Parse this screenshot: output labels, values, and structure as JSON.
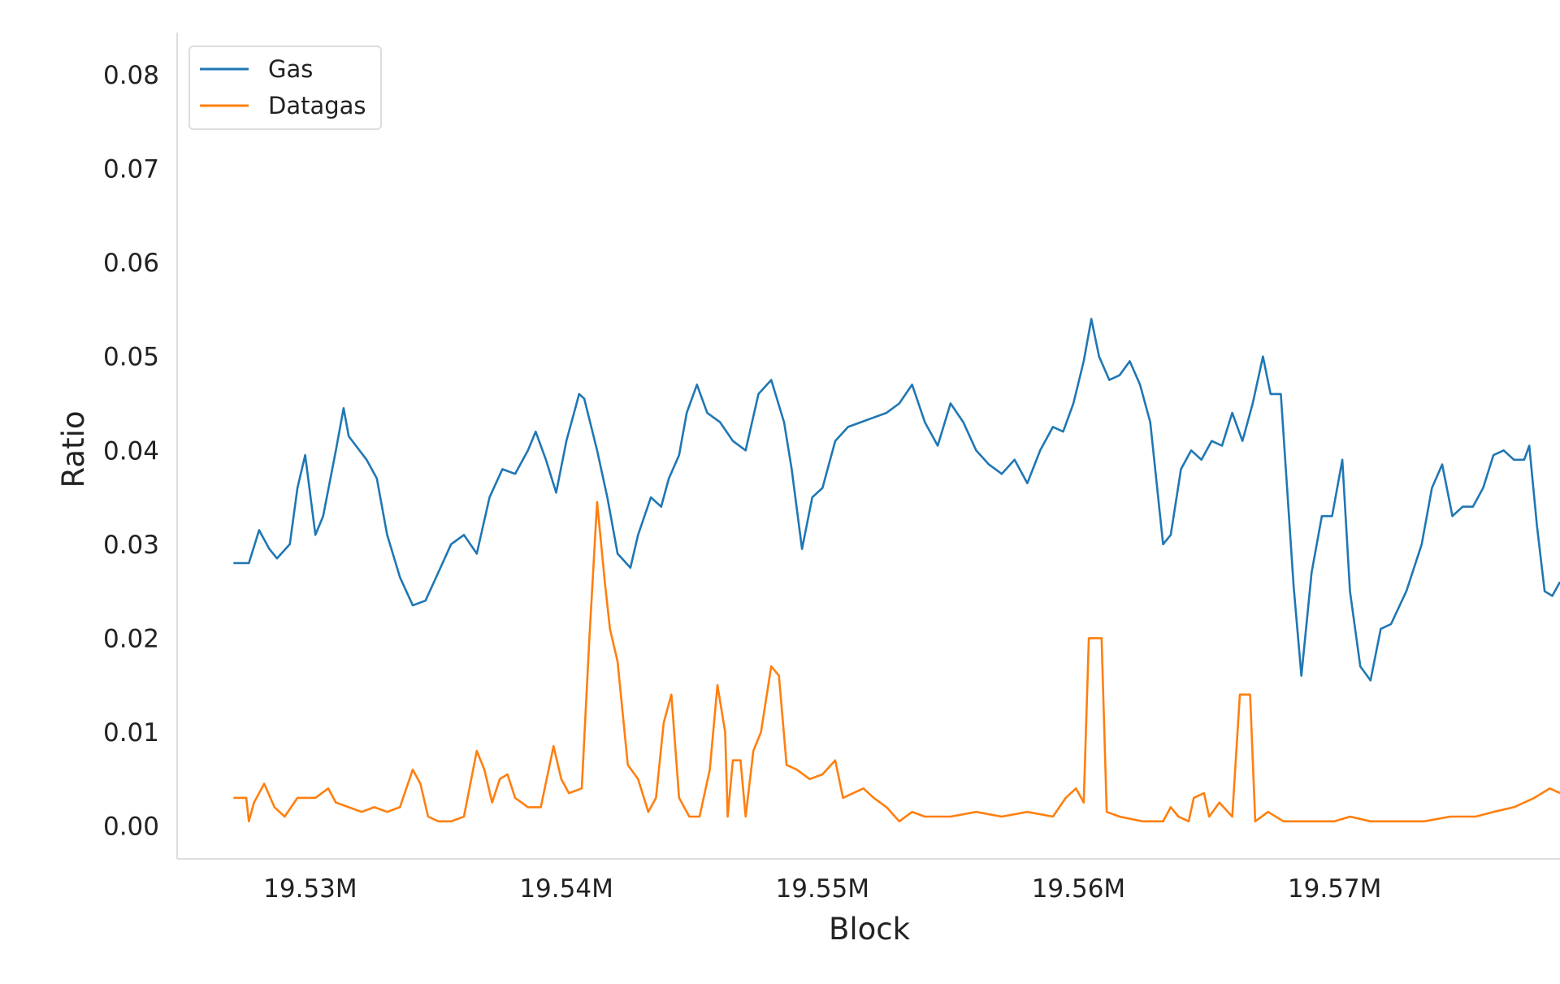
{
  "chart_data": {
    "type": "line",
    "title": "",
    "xlabel": "Block",
    "ylabel": "Ratio",
    "xlim": [
      19524800,
      19578800
    ],
    "ylim": [
      -0.0035,
      0.0845
    ],
    "x_ticks": [
      {
        "value": 19530000,
        "label": "19.53M"
      },
      {
        "value": 19540000,
        "label": "19.54M"
      },
      {
        "value": 19550000,
        "label": "19.55M"
      },
      {
        "value": 19560000,
        "label": "19.56M"
      },
      {
        "value": 19570000,
        "label": "19.57M"
      }
    ],
    "y_ticks": [
      {
        "value": 0.0,
        "label": "0.00"
      },
      {
        "value": 0.01,
        "label": "0.01"
      },
      {
        "value": 0.02,
        "label": "0.02"
      },
      {
        "value": 0.03,
        "label": "0.03"
      },
      {
        "value": 0.04,
        "label": "0.04"
      },
      {
        "value": 0.05,
        "label": "0.05"
      },
      {
        "value": 0.06,
        "label": "0.06"
      },
      {
        "value": 0.07,
        "label": "0.07"
      },
      {
        "value": 0.08,
        "label": "0.08"
      }
    ],
    "grid": false,
    "legend_position": "top-left",
    "series": [
      {
        "name": "Gas",
        "color": "#1f77b4",
        "points": [
          [
            19527000,
            0.028
          ],
          [
            19527600,
            0.028
          ],
          [
            19528000,
            0.0315
          ],
          [
            19528400,
            0.0295
          ],
          [
            19528700,
            0.0285
          ],
          [
            19529200,
            0.03
          ],
          [
            19529500,
            0.036
          ],
          [
            19529800,
            0.0395
          ],
          [
            19530200,
            0.031
          ],
          [
            19530500,
            0.033
          ],
          [
            19531000,
            0.04
          ],
          [
            19531300,
            0.0445
          ],
          [
            19531500,
            0.0415
          ],
          [
            19532200,
            0.039
          ],
          [
            19532600,
            0.037
          ],
          [
            19533000,
            0.031
          ],
          [
            19533500,
            0.0265
          ],
          [
            19534000,
            0.0235
          ],
          [
            19534500,
            0.024
          ],
          [
            19535000,
            0.027
          ],
          [
            19535500,
            0.03
          ],
          [
            19536000,
            0.031
          ],
          [
            19536500,
            0.029
          ],
          [
            19537000,
            0.035
          ],
          [
            19537500,
            0.038
          ],
          [
            19538000,
            0.0375
          ],
          [
            19538500,
            0.04
          ],
          [
            19538800,
            0.042
          ],
          [
            19539200,
            0.039
          ],
          [
            19539600,
            0.0355
          ],
          [
            19540000,
            0.041
          ],
          [
            19540500,
            0.046
          ],
          [
            19540700,
            0.0455
          ],
          [
            19541200,
            0.04
          ],
          [
            19541600,
            0.035
          ],
          [
            19542000,
            0.029
          ],
          [
            19542500,
            0.0275
          ],
          [
            19542800,
            0.031
          ],
          [
            19543300,
            0.035
          ],
          [
            19543700,
            0.034
          ],
          [
            19544000,
            0.037
          ],
          [
            19544400,
            0.0395
          ],
          [
            19544700,
            0.044
          ],
          [
            19545100,
            0.047
          ],
          [
            19545500,
            0.044
          ],
          [
            19546000,
            0.043
          ],
          [
            19546500,
            0.041
          ],
          [
            19547000,
            0.04
          ],
          [
            19547500,
            0.046
          ],
          [
            19548000,
            0.0475
          ],
          [
            19548500,
            0.043
          ],
          [
            19548800,
            0.038
          ],
          [
            19549200,
            0.0295
          ],
          [
            19549600,
            0.035
          ],
          [
            19550000,
            0.036
          ],
          [
            19550500,
            0.041
          ],
          [
            19551000,
            0.0425
          ],
          [
            19551500,
            0.043
          ],
          [
            19552000,
            0.0435
          ],
          [
            19552500,
            0.044
          ],
          [
            19553000,
            0.045
          ],
          [
            19553500,
            0.047
          ],
          [
            19554000,
            0.043
          ],
          [
            19554500,
            0.0405
          ],
          [
            19555000,
            0.045
          ],
          [
            19555500,
            0.043
          ],
          [
            19556000,
            0.04
          ],
          [
            19556500,
            0.0385
          ],
          [
            19557000,
            0.0375
          ],
          [
            19557500,
            0.039
          ],
          [
            19558000,
            0.0365
          ],
          [
            19558500,
            0.04
          ],
          [
            19559000,
            0.0425
          ],
          [
            19559400,
            0.042
          ],
          [
            19559800,
            0.045
          ],
          [
            19560200,
            0.0495
          ],
          [
            19560500,
            0.054
          ],
          [
            19560800,
            0.05
          ],
          [
            19561200,
            0.0475
          ],
          [
            19561600,
            0.048
          ],
          [
            19562000,
            0.0495
          ],
          [
            19562400,
            0.047
          ],
          [
            19562800,
            0.043
          ],
          [
            19563300,
            0.03
          ],
          [
            19563600,
            0.031
          ],
          [
            19564000,
            0.038
          ],
          [
            19564400,
            0.04
          ],
          [
            19564800,
            0.039
          ],
          [
            19565200,
            0.041
          ],
          [
            19565600,
            0.0405
          ],
          [
            19566000,
            0.044
          ],
          [
            19566400,
            0.041
          ],
          [
            19566800,
            0.045
          ],
          [
            19567200,
            0.05
          ],
          [
            19567500,
            0.046
          ],
          [
            19567900,
            0.046
          ],
          [
            19568400,
            0.0255
          ],
          [
            19568700,
            0.016
          ],
          [
            19569100,
            0.027
          ],
          [
            19569500,
            0.033
          ],
          [
            19569900,
            0.033
          ],
          [
            19570300,
            0.039
          ],
          [
            19570600,
            0.025
          ],
          [
            19571000,
            0.017
          ],
          [
            19571400,
            0.0155
          ],
          [
            19571800,
            0.021
          ],
          [
            19572200,
            0.0215
          ],
          [
            19572800,
            0.025
          ],
          [
            19573400,
            0.03
          ],
          [
            19573800,
            0.036
          ],
          [
            19574200,
            0.0385
          ],
          [
            19574600,
            0.033
          ],
          [
            19575000,
            0.034
          ],
          [
            19575400,
            0.034
          ],
          [
            19575800,
            0.036
          ],
          [
            19576200,
            0.0395
          ],
          [
            19576600,
            0.04
          ],
          [
            19577000,
            0.039
          ],
          [
            19577400,
            0.039
          ],
          [
            19577600,
            0.0405
          ],
          [
            19577900,
            0.032
          ],
          [
            19578200,
            0.025
          ],
          [
            19578500,
            0.0245
          ],
          [
            19578800,
            0.026
          ]
        ]
      },
      {
        "name": "Datagas",
        "color": "#ff7f0e",
        "points": [
          [
            19527000,
            0.003
          ],
          [
            19527500,
            0.003
          ],
          [
            19527600,
            0.0005
          ],
          [
            19527800,
            0.0025
          ],
          [
            19528200,
            0.0045
          ],
          [
            19528600,
            0.002
          ],
          [
            19529000,
            0.001
          ],
          [
            19529500,
            0.003
          ],
          [
            19530200,
            0.003
          ],
          [
            19530700,
            0.004
          ],
          [
            19531000,
            0.0025
          ],
          [
            19531500,
            0.002
          ],
          [
            19532000,
            0.0015
          ],
          [
            19532500,
            0.002
          ],
          [
            19533000,
            0.0015
          ],
          [
            19533500,
            0.002
          ],
          [
            19534000,
            0.006
          ],
          [
            19534300,
            0.0045
          ],
          [
            19534600,
            0.001
          ],
          [
            19535000,
            0.0005
          ],
          [
            19535500,
            0.0005
          ],
          [
            19536000,
            0.001
          ],
          [
            19536500,
            0.008
          ],
          [
            19536800,
            0.006
          ],
          [
            19537100,
            0.0025
          ],
          [
            19537400,
            0.005
          ],
          [
            19537700,
            0.0055
          ],
          [
            19538000,
            0.003
          ],
          [
            19538500,
            0.002
          ],
          [
            19539000,
            0.002
          ],
          [
            19539500,
            0.0085
          ],
          [
            19539800,
            0.005
          ],
          [
            19540100,
            0.0035
          ],
          [
            19540600,
            0.004
          ],
          [
            19540900,
            0.02
          ],
          [
            19541200,
            0.0345
          ],
          [
            19541500,
            0.026
          ],
          [
            19541700,
            0.021
          ],
          [
            19542000,
            0.0175
          ],
          [
            19542200,
            0.012
          ],
          [
            19542400,
            0.0065
          ],
          [
            19542800,
            0.005
          ],
          [
            19543200,
            0.0015
          ],
          [
            19543500,
            0.003
          ],
          [
            19543800,
            0.011
          ],
          [
            19544100,
            0.014
          ],
          [
            19544400,
            0.003
          ],
          [
            19544800,
            0.001
          ],
          [
            19545200,
            0.001
          ],
          [
            19545600,
            0.006
          ],
          [
            19545900,
            0.015
          ],
          [
            19546200,
            0.01
          ],
          [
            19546300,
            0.001
          ],
          [
            19546500,
            0.007
          ],
          [
            19546800,
            0.007
          ],
          [
            19547000,
            0.001
          ],
          [
            19547300,
            0.008
          ],
          [
            19547600,
            0.01
          ],
          [
            19548000,
            0.017
          ],
          [
            19548300,
            0.016
          ],
          [
            19548600,
            0.0065
          ],
          [
            19549000,
            0.006
          ],
          [
            19549500,
            0.005
          ],
          [
            19550000,
            0.0055
          ],
          [
            19550500,
            0.007
          ],
          [
            19550800,
            0.003
          ],
          [
            19551200,
            0.0035
          ],
          [
            19551600,
            0.004
          ],
          [
            19552000,
            0.003
          ],
          [
            19552500,
            0.002
          ],
          [
            19553000,
            0.0005
          ],
          [
            19553500,
            0.0015
          ],
          [
            19554000,
            0.001
          ],
          [
            19555000,
            0.001
          ],
          [
            19556000,
            0.0015
          ],
          [
            19557000,
            0.001
          ],
          [
            19558000,
            0.0015
          ],
          [
            19559000,
            0.001
          ],
          [
            19559500,
            0.003
          ],
          [
            19559900,
            0.004
          ],
          [
            19560200,
            0.0025
          ],
          [
            19560400,
            0.02
          ],
          [
            19560900,
            0.02
          ],
          [
            19561100,
            0.0015
          ],
          [
            19561600,
            0.001
          ],
          [
            19562500,
            0.0005
          ],
          [
            19563300,
            0.0005
          ],
          [
            19563600,
            0.002
          ],
          [
            19563900,
            0.001
          ],
          [
            19564300,
            0.0005
          ],
          [
            19564500,
            0.003
          ],
          [
            19564900,
            0.0035
          ],
          [
            19565100,
            0.001
          ],
          [
            19565500,
            0.0025
          ],
          [
            19566000,
            0.001
          ],
          [
            19566300,
            0.014
          ],
          [
            19566700,
            0.014
          ],
          [
            19566900,
            0.0005
          ],
          [
            19567400,
            0.0015
          ],
          [
            19568000,
            0.0005
          ],
          [
            19569000,
            0.0005
          ],
          [
            19570000,
            0.0005
          ],
          [
            19570600,
            0.001
          ],
          [
            19571400,
            0.0005
          ],
          [
            19572400,
            0.0005
          ],
          [
            19573500,
            0.0005
          ],
          [
            19574500,
            0.001
          ],
          [
            19575500,
            0.001
          ],
          [
            19576200,
            0.0015
          ],
          [
            19577000,
            0.002
          ],
          [
            19577800,
            0.003
          ],
          [
            19578400,
            0.004
          ],
          [
            19578800,
            0.0035
          ]
        ]
      }
    ]
  }
}
